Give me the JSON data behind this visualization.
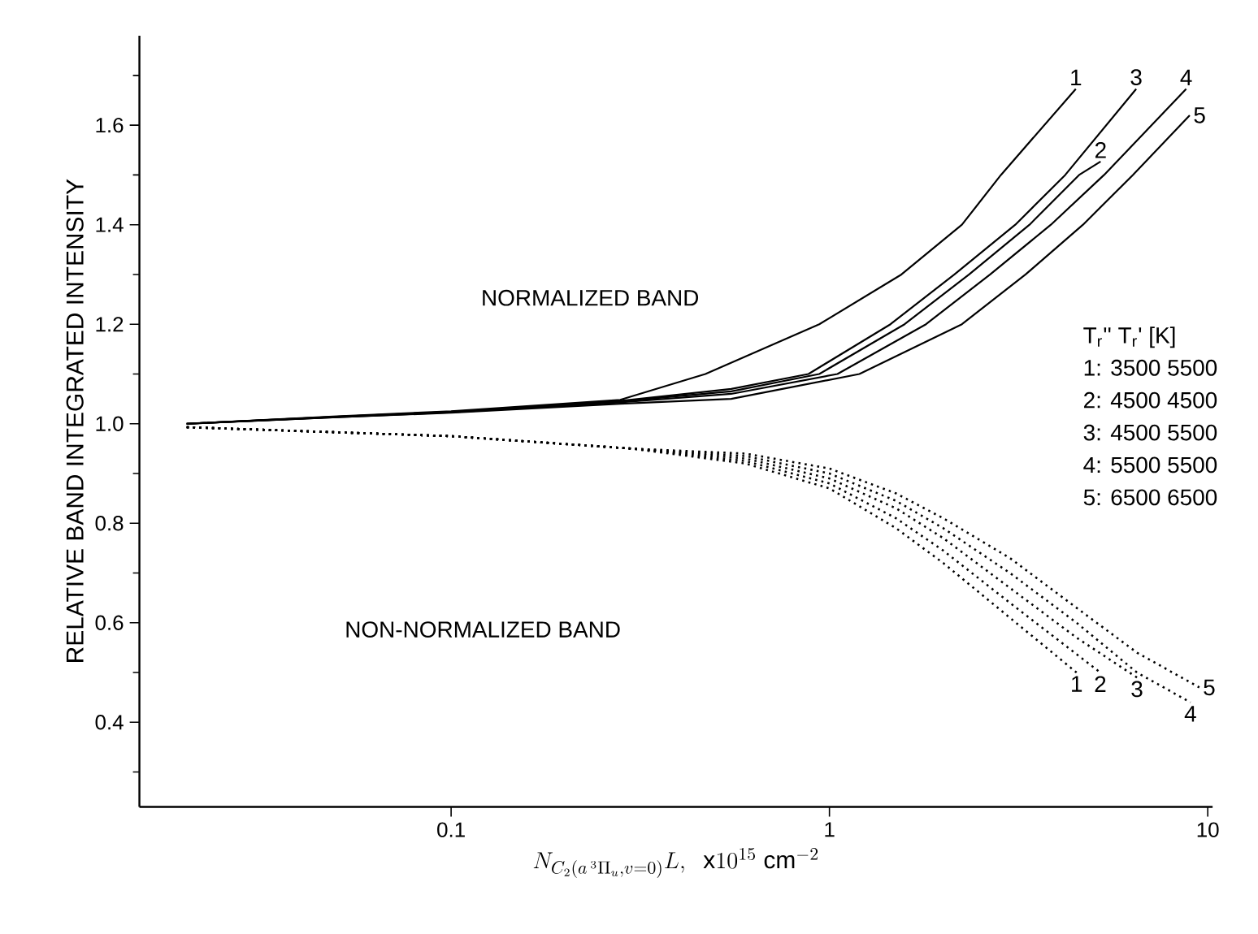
{
  "chart_data": {
    "type": "line",
    "xlabel": "N_{C_2(a\\,^3\\Pi_u,v=0)}L,\\ \\ \\mathrm{x}10^{15}\\ \\mathrm{cm}^{-2}",
    "ylabel": "RELATIVE  BAND INTEGRATED INTENSITY",
    "log": "x",
    "xlim": [
      0.015,
      10.3
    ],
    "ylim": [
      0.23,
      1.78
    ],
    "xticks": [
      0.1,
      1,
      10
    ],
    "yticks": [
      {
        "value": 0.3,
        "label": null
      },
      0.4,
      {
        "value": 0.5,
        "label": null
      },
      0.6,
      {
        "value": 0.7,
        "label": null
      },
      0.8,
      {
        "value": 0.9,
        "label": null
      },
      {
        "value": 1.0,
        "label": "1.0"
      },
      {
        "value": 1.1,
        "label": null
      },
      1.2,
      {
        "value": 1.3,
        "label": null
      },
      1.4,
      {
        "value": 1.5,
        "label": null
      },
      1.6,
      {
        "value": 1.7,
        "label": null
      }
    ],
    "grid": false,
    "marker": "none",
    "series": [
      {
        "color": "#000000",
        "line_style": "solid",
        "x": [
          0.02,
          0.05,
          0.1,
          0.28,
          0.47,
          0.94,
          1.55,
          2.24,
          2.84,
          4.48
        ],
        "values": [
          1.0,
          1.015,
          1.025,
          1.048,
          1.1,
          1.2,
          1.3,
          1.4,
          1.5,
          1.673
        ]
      },
      {
        "color": "#000000",
        "line_style": "solid",
        "x": [
          0.02,
          0.05,
          0.1,
          0.28,
          0.55,
          0.94,
          1.58,
          2.34,
          3.38,
          4.57,
          5.21
        ],
        "values": [
          1.0,
          1.014,
          1.024,
          1.045,
          1.065,
          1.1,
          1.2,
          1.3,
          1.4,
          1.5,
          1.527
        ]
      },
      {
        "color": "#000000",
        "line_style": "solid",
        "x": [
          0.02,
          0.05,
          0.1,
          0.28,
          0.55,
          0.88,
          1.45,
          2.14,
          3.1,
          4.2,
          6.47
        ],
        "values": [
          1.0,
          1.014,
          1.024,
          1.046,
          1.07,
          1.1,
          1.2,
          1.3,
          1.4,
          1.5,
          1.673
        ]
      },
      {
        "color": "#000000",
        "line_style": "solid",
        "x": [
          0.02,
          0.05,
          0.1,
          0.28,
          0.55,
          1.05,
          1.8,
          2.66,
          3.85,
          5.32,
          8.77
        ],
        "values": [
          1.0,
          1.013,
          1.023,
          1.043,
          1.06,
          1.1,
          1.2,
          1.3,
          1.4,
          1.5,
          1.673
        ]
      },
      {
        "color": "#000000",
        "line_style": "solid",
        "x": [
          0.02,
          0.05,
          0.1,
          0.28,
          0.55,
          1.2,
          2.24,
          3.3,
          4.68,
          6.34,
          8.96
        ],
        "values": [
          1.0,
          1.013,
          1.022,
          1.04,
          1.05,
          1.1,
          1.2,
          1.3,
          1.4,
          1.5,
          1.62
        ]
      },
      {
        "color": "#000000",
        "line_style": "dotted",
        "x": [
          0.02,
          0.1,
          0.3,
          0.6,
          1,
          1.5,
          2,
          3,
          4.5
        ],
        "values": [
          0.993,
          0.975,
          0.95,
          0.92,
          0.87,
          0.79,
          0.72,
          0.61,
          0.5
        ]
      },
      {
        "color": "#000000",
        "line_style": "dotted",
        "x": [
          0.02,
          0.1,
          0.3,
          0.6,
          1,
          1.5,
          2,
          3,
          5.2
        ],
        "values": [
          0.993,
          0.975,
          0.95,
          0.925,
          0.88,
          0.81,
          0.745,
          0.64,
          0.5
        ]
      },
      {
        "color": "#000000",
        "line_style": "dotted",
        "x": [
          0.02,
          0.1,
          0.3,
          0.6,
          1,
          1.5,
          2,
          3,
          4.5,
          6.5
        ],
        "values": [
          0.993,
          0.975,
          0.95,
          0.93,
          0.89,
          0.83,
          0.77,
          0.67,
          0.57,
          0.49
        ]
      },
      {
        "color": "#000000",
        "line_style": "dotted",
        "x": [
          0.02,
          0.1,
          0.3,
          0.6,
          1,
          1.5,
          2,
          3,
          4.5,
          6.5,
          9
        ],
        "values": [
          0.993,
          0.975,
          0.95,
          0.935,
          0.9,
          0.845,
          0.79,
          0.7,
          0.6,
          0.5,
          0.44
        ]
      },
      {
        "color": "#000000",
        "line_style": "dotted",
        "x": [
          0.02,
          0.1,
          0.3,
          0.6,
          1,
          1.5,
          2,
          3,
          4.5,
          6.5,
          9.5
        ],
        "values": [
          0.993,
          0.975,
          0.95,
          0.94,
          0.91,
          0.86,
          0.81,
          0.73,
          0.63,
          0.54,
          0.47
        ]
      }
    ],
    "annotations": [
      "NORMALIZED BAND",
      "NON-NORMALIZED BAND",
      "1",
      "2",
      "3",
      "4",
      "5",
      "1",
      "2",
      "3",
      "4",
      "5",
      "T$_{r}$''    T$_{r}$' [K]",
      "1:   3500   5500",
      "2:   4500   4500",
      "3:   4500   5500",
      "4:   5500   5500",
      "5:   6500   6500"
    ]
  }
}
